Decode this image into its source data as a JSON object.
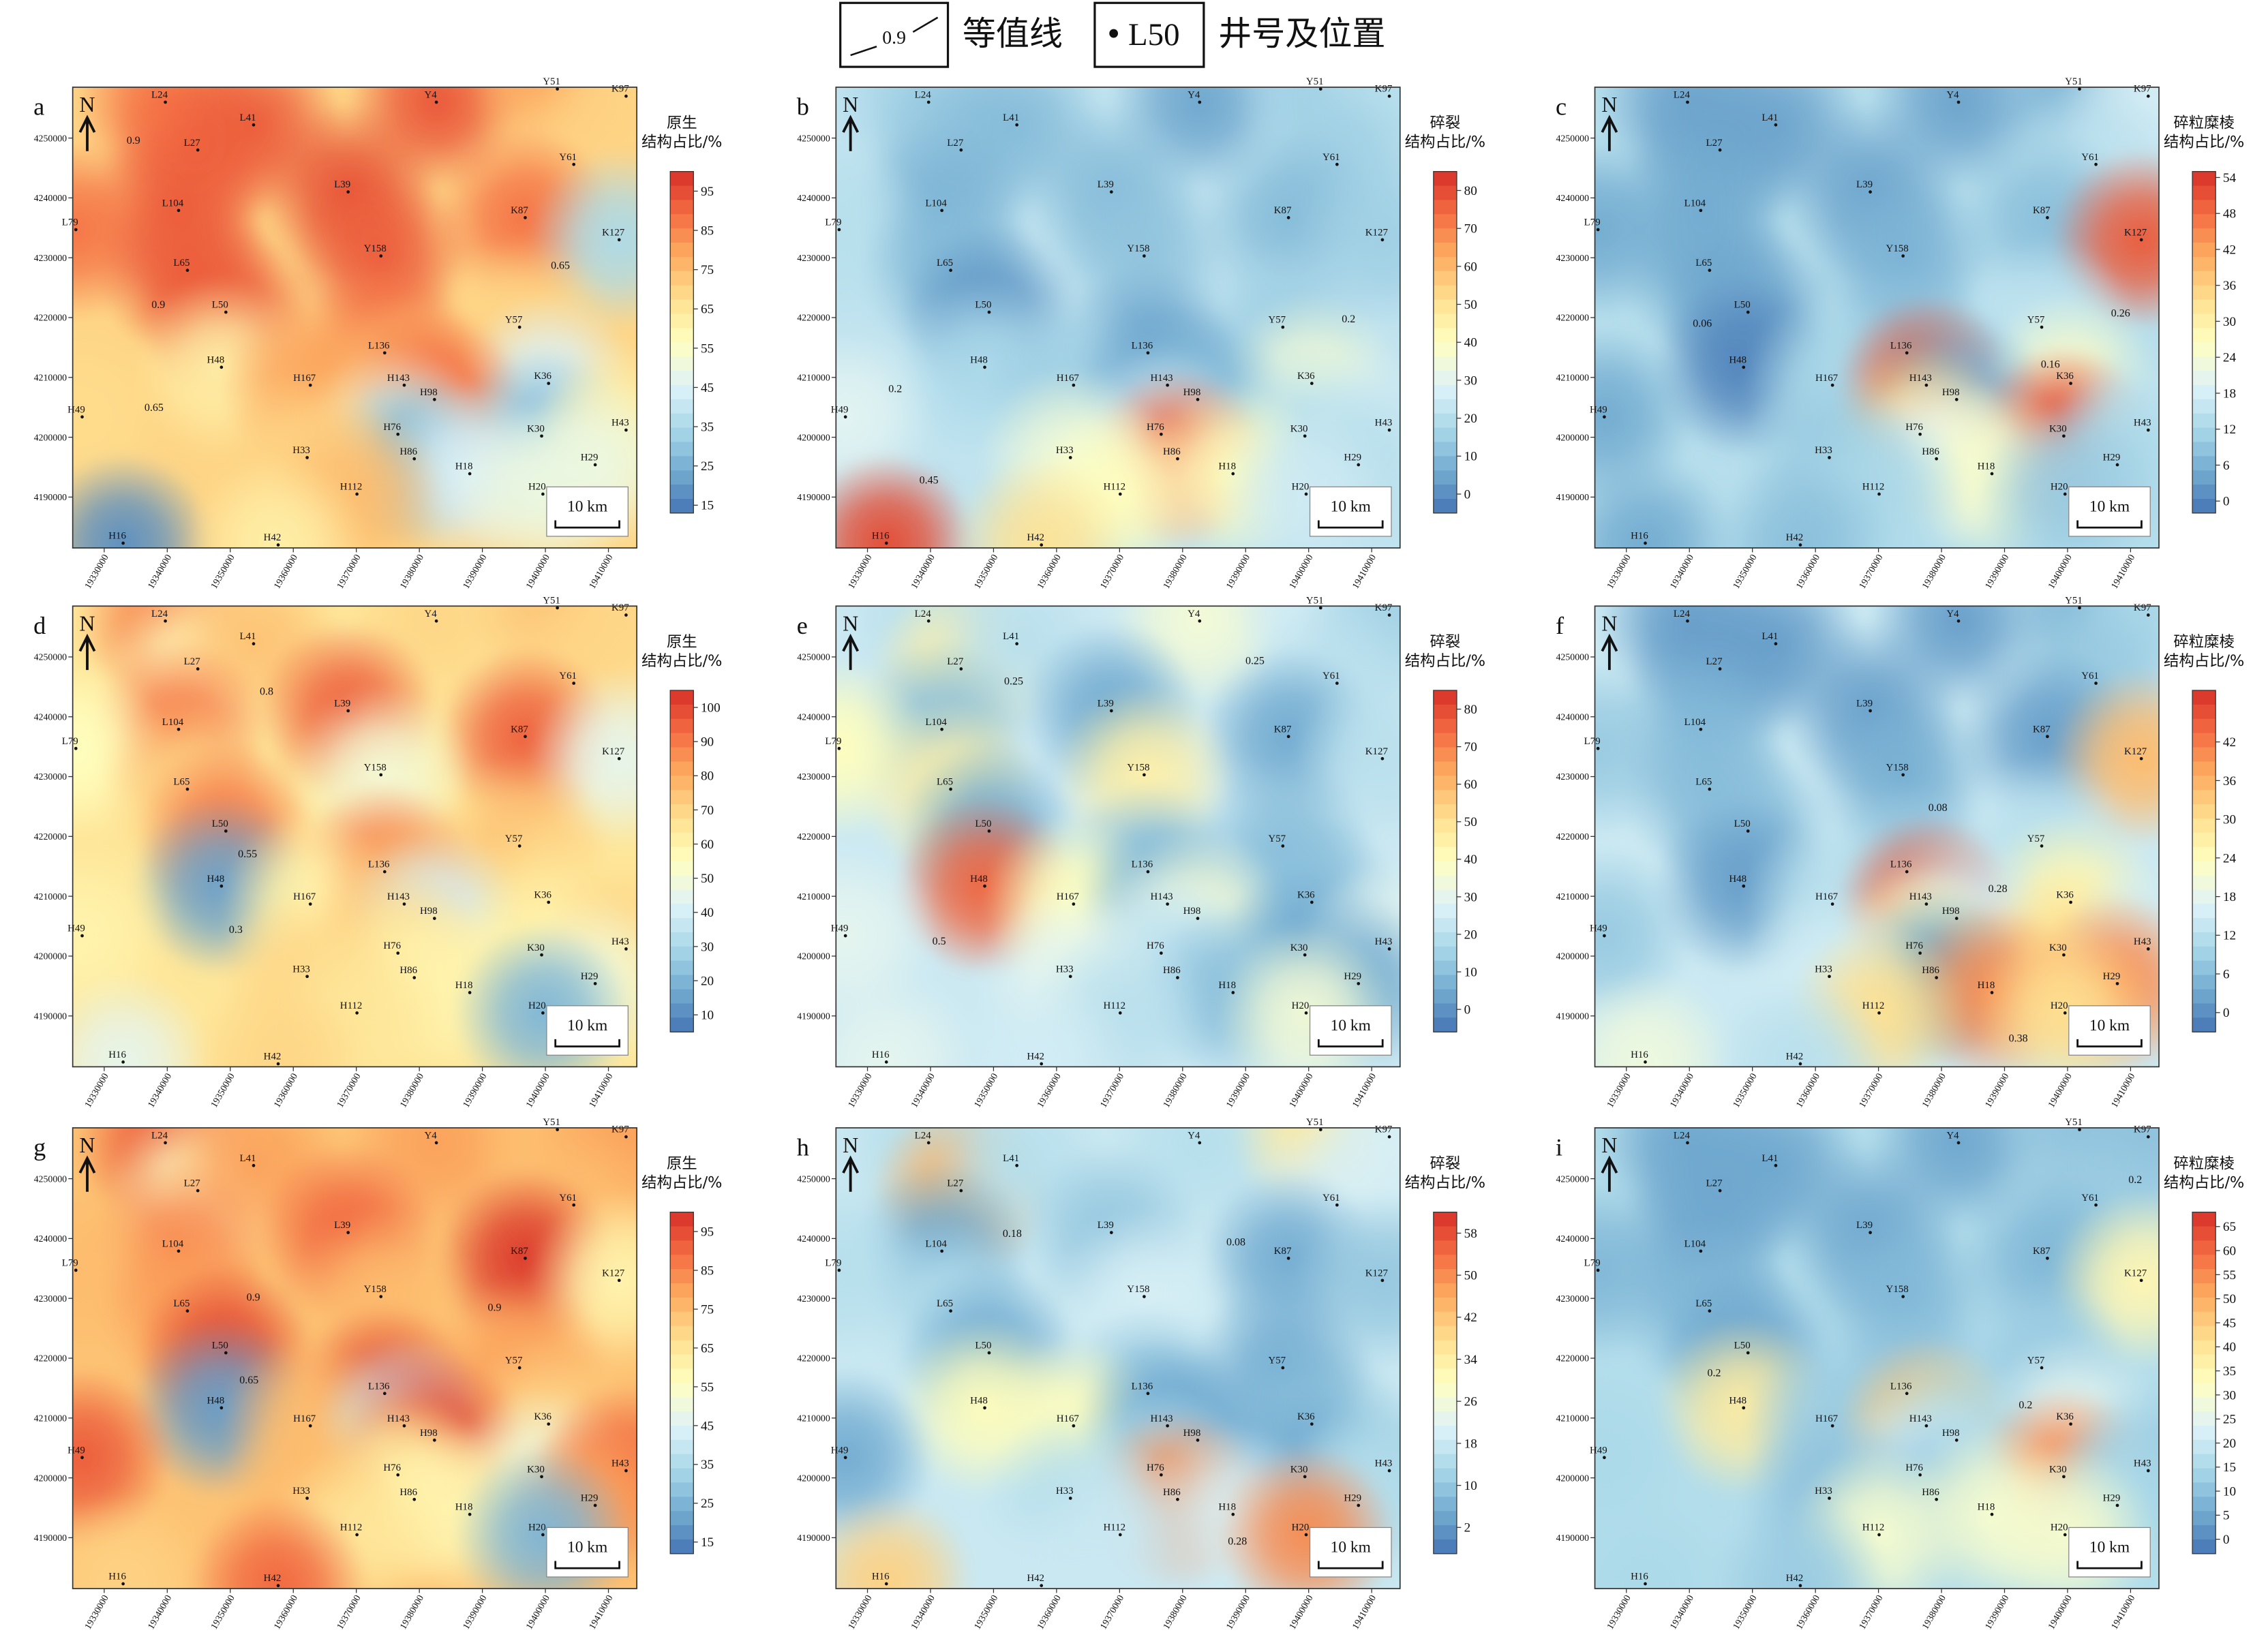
{
  "legend": {
    "contour_sample": "0.9",
    "contour": "等值线",
    "well_sample": "L50",
    "well": "井号及位置"
  },
  "north": "N",
  "scale_bar": "10 km",
  "xlim": [
    19325000,
    19414500
  ],
  "ylim": [
    4181500,
    4258500
  ],
  "xticks": [
    19330000,
    19340000,
    19350000,
    19360000,
    19370000,
    19380000,
    19390000,
    19400000,
    19410000
  ],
  "yticks": [
    4190000,
    4200000,
    4210000,
    4220000,
    4230000,
    4240000,
    4250000
  ],
  "wells": [
    {
      "name": "L24",
      "x": 19339700,
      "y": 4256000
    },
    {
      "name": "L27",
      "x": 19344850,
      "y": 4248000
    },
    {
      "name": "L41",
      "x": 19353700,
      "y": 4252200
    },
    {
      "name": "Y4",
      "x": 19382700,
      "y": 4256000
    },
    {
      "name": "Y51",
      "x": 19401900,
      "y": 4258200
    },
    {
      "name": "K97",
      "x": 19412800,
      "y": 4257000
    },
    {
      "name": "Y61",
      "x": 19404500,
      "y": 4245600
    },
    {
      "name": "L39",
      "x": 19368700,
      "y": 4241000
    },
    {
      "name": "L104",
      "x": 19341800,
      "y": 4237900
    },
    {
      "name": "K87",
      "x": 19396800,
      "y": 4236700
    },
    {
      "name": "L79",
      "x": 19325500,
      "y": 4234700
    },
    {
      "name": "K127",
      "x": 19411700,
      "y": 4233000
    },
    {
      "name": "Y158",
      "x": 19373900,
      "y": 4230300
    },
    {
      "name": "L65",
      "x": 19343200,
      "y": 4227900
    },
    {
      "name": "L50",
      "x": 19349300,
      "y": 4220900
    },
    {
      "name": "Y57",
      "x": 19395900,
      "y": 4218400
    },
    {
      "name": "L136",
      "x": 19374500,
      "y": 4214100
    },
    {
      "name": "H48",
      "x": 19348600,
      "y": 4211700
    },
    {
      "name": "H167",
      "x": 19362700,
      "y": 4208700
    },
    {
      "name": "H143",
      "x": 19377600,
      "y": 4208700
    },
    {
      "name": "K36",
      "x": 19400500,
      "y": 4209000
    },
    {
      "name": "H98",
      "x": 19382400,
      "y": 4206300
    },
    {
      "name": "H49",
      "x": 19326500,
      "y": 4203400
    },
    {
      "name": "K30",
      "x": 19399400,
      "y": 4200200
    },
    {
      "name": "H76",
      "x": 19376600,
      "y": 4200500
    },
    {
      "name": "H86",
      "x": 19379200,
      "y": 4196400
    },
    {
      "name": "H43",
      "x": 19412800,
      "y": 4201200
    },
    {
      "name": "H33",
      "x": 19362200,
      "y": 4196600
    },
    {
      "name": "H18",
      "x": 19388000,
      "y": 4193900
    },
    {
      "name": "H112",
      "x": 19370100,
      "y": 4190500
    },
    {
      "name": "H29",
      "x": 19407900,
      "y": 4195400
    },
    {
      "name": "H20",
      "x": 19399600,
      "y": 4190500
    },
    {
      "name": "H16",
      "x": 19333000,
      "y": 4182300
    },
    {
      "name": "H42",
      "x": 19357600,
      "y": 4182000
    }
  ],
  "panels": [
    {
      "letter": "a",
      "colorbar_title": [
        "原生",
        "结构占比/%"
      ],
      "clim": [
        13,
        100
      ],
      "cticks": [
        15,
        25,
        35,
        45,
        55,
        65,
        75,
        85,
        95
      ],
      "values": [
        88,
        90,
        92,
        93,
        80,
        70,
        70,
        94,
        92,
        88,
        88,
        35,
        92,
        92,
        92,
        70,
        88,
        62,
        80,
        75,
        45,
        90,
        68,
        28,
        50,
        25,
        62,
        70,
        45,
        75,
        50,
        50,
        18,
        62
      ],
      "contour_labels": [
        {
          "value": 0.9,
          "x": 19334640,
          "y": 4249030
        },
        {
          "value": 0.9,
          "x": 19338580,
          "y": 4221600
        },
        {
          "value": 0.65,
          "x": 19337890,
          "y": 4204370
        },
        {
          "value": 0.65,
          "x": 19402380,
          "y": 4228160
        }
      ]
    },
    {
      "letter": "b",
      "colorbar_title": [
        "碎裂",
        "结构占比/%"
      ],
      "clim": [
        -5,
        85
      ],
      "cticks": [
        0,
        10,
        20,
        30,
        40,
        50,
        60,
        70,
        80
      ],
      "values": [
        15,
        12,
        10,
        5,
        15,
        20,
        15,
        10,
        8,
        10,
        20,
        15,
        12,
        10,
        2,
        15,
        5,
        18,
        15,
        5,
        35,
        10,
        30,
        20,
        25,
        75,
        25,
        35,
        40,
        40,
        20,
        25,
        80,
        50
      ],
      "contour_labels": [
        {
          "value": 0.2,
          "x": 19334400,
          "y": 4207530
        },
        {
          "value": 0.45,
          "x": 19339740,
          "y": 4192240
        },
        {
          "value": 0.2,
          "x": 19406330,
          "y": 4219180
        }
      ]
    },
    {
      "letter": "c",
      "colorbar_title": [
        "碎粒糜棱",
        "结构占比/%"
      ],
      "clim": [
        -2,
        55
      ],
      "cticks": [
        0,
        6,
        12,
        18,
        24,
        30,
        36,
        42,
        48,
        54
      ],
      "values": [
        4,
        4,
        4,
        4,
        6,
        18,
        15,
        4,
        5,
        8,
        5,
        50,
        6,
        5,
        4,
        15,
        8,
        0,
        12,
        50,
        25,
        6,
        5,
        52,
        35,
        20,
        15,
        10,
        25,
        12,
        12,
        10,
        5,
        8
      ],
      "contour_labels": [
        {
          "value": 0.06,
          "x": 19342060,
          "y": 4218450
        },
        {
          "value": 0.26,
          "x": 19408420,
          "y": 4220150
        },
        {
          "value": 0.16,
          "x": 19397280,
          "y": 4211650
        }
      ]
    },
    {
      "letter": "d",
      "colorbar_title": [
        "原生",
        "结构占比/%"
      ],
      "clim": [
        5,
        105
      ],
      "cticks": [
        10,
        20,
        30,
        40,
        50,
        60,
        70,
        80,
        90,
        100
      ],
      "values": [
        88,
        55,
        75,
        70,
        75,
        70,
        70,
        95,
        90,
        95,
        55,
        45,
        50,
        70,
        90,
        75,
        90,
        15,
        60,
        75,
        65,
        40,
        60,
        60,
        70,
        60,
        70,
        70,
        60,
        65,
        50,
        20,
        45,
        70
      ],
      "contour_labels": [
        {
          "value": 0.8,
          "x": 19355750,
          "y": 4243690
        },
        {
          "value": 0.55,
          "x": 19352740,
          "y": 4216510
        },
        {
          "value": 0.3,
          "x": 19350880,
          "y": 4203890
        }
      ]
    },
    {
      "letter": "e",
      "colorbar_title": [
        "碎裂",
        "结构占比/%"
      ],
      "clim": [
        -6,
        85
      ],
      "cticks": [
        0,
        10,
        20,
        30,
        40,
        50,
        60,
        70,
        80
      ],
      "values": [
        20,
        45,
        20,
        35,
        25,
        15,
        20,
        5,
        10,
        5,
        40,
        20,
        45,
        45,
        5,
        10,
        10,
        75,
        40,
        8,
        10,
        35,
        30,
        5,
        25,
        20,
        30,
        30,
        10,
        20,
        5,
        35,
        30,
        25
      ],
      "contour_labels": [
        {
          "value": 0.25,
          "x": 19353200,
          "y": 4245390
        },
        {
          "value": 0.5,
          "x": 19341370,
          "y": 4201950
        },
        {
          "value": 0.25,
          "x": 19391480,
          "y": 4248790
        }
      ]
    },
    {
      "letter": "f",
      "colorbar_title": [
        "碎粒糜棱",
        "结构占比/%"
      ],
      "clim": [
        -3,
        50
      ],
      "cticks": [
        0,
        6,
        12,
        18,
        24,
        30,
        36,
        42
      ],
      "values": [
        2,
        2,
        2,
        2,
        5,
        10,
        8,
        2,
        5,
        2,
        8,
        35,
        4,
        6,
        6,
        12,
        8,
        2,
        12,
        45,
        25,
        15,
        8,
        30,
        25,
        2,
        15,
        15,
        40,
        30,
        40,
        30,
        20,
        12
      ],
      "contour_labels": [
        {
          "value": 0.08,
          "x": 19379420,
          "y": 4224270
        },
        {
          "value": 0.28,
          "x": 19388930,
          "y": 4210680
        },
        {
          "value": 0.38,
          "x": 19392180,
          "y": 4185690
        }
      ]
    },
    {
      "letter": "g",
      "colorbar_title": [
        "原生",
        "结构占比/%"
      ],
      "clim": [
        12,
        100
      ],
      "cticks": [
        15,
        25,
        35,
        45,
        55,
        65,
        75,
        85,
        95
      ],
      "values": [
        92,
        55,
        80,
        80,
        75,
        80,
        75,
        90,
        85,
        98,
        75,
        60,
        75,
        80,
        95,
        80,
        95,
        20,
        75,
        40,
        70,
        95,
        92,
        50,
        70,
        60,
        90,
        75,
        60,
        65,
        80,
        25,
        70,
        90
      ],
      "contour_labels": [
        {
          "value": 0.9,
          "x": 19353660,
          "y": 4229610
        },
        {
          "value": 0.65,
          "x": 19352970,
          "y": 4215780
        },
        {
          "value": 0.9,
          "x": 19391940,
          "y": 4227920
        }
      ]
    },
    {
      "letter": "h",
      "colorbar_title": [
        "碎裂",
        "结构占比/%"
      ],
      "clim": [
        -3,
        62
      ],
      "cticks": [
        2,
        10,
        18,
        26,
        34,
        42,
        50,
        58
      ],
      "values": [
        15,
        45,
        15,
        15,
        35,
        20,
        20,
        10,
        5,
        5,
        15,
        10,
        20,
        15,
        5,
        5,
        10,
        30,
        30,
        5,
        8,
        5,
        5,
        5,
        15,
        50,
        12,
        15,
        20,
        18,
        15,
        50,
        40,
        18
      ],
      "contour_labels": [
        {
          "value": 0.18,
          "x": 19352970,
          "y": 4240290
        },
        {
          "value": 0.08,
          "x": 19388460,
          "y": 4238840
        },
        {
          "value": 0.28,
          "x": 19388700,
          "y": 4188840
        }
      ]
    },
    {
      "letter": "i",
      "colorbar_title": [
        "碎粒糜棱",
        "结构占比/%"
      ],
      "clim": [
        -3,
        68
      ],
      "cticks": [
        0,
        5,
        10,
        15,
        20,
        25,
        30,
        35,
        40,
        45,
        50,
        55,
        60,
        65
      ],
      "values": [
        5,
        5,
        5,
        5,
        10,
        10,
        12,
        5,
        5,
        8,
        8,
        35,
        8,
        8,
        5,
        12,
        10,
        38,
        12,
        45,
        25,
        15,
        15,
        55,
        20,
        12,
        12,
        10,
        30,
        30,
        15,
        30,
        15,
        12
      ],
      "contour_labels": [
        {
          "value": 0.2,
          "x": 19343920,
          "y": 4216990
        },
        {
          "value": 0.2,
          "x": 19393340,
          "y": 4211650
        },
        {
          "value": 0.2,
          "x": 19410740,
          "y": 4249270
        }
      ]
    }
  ]
}
